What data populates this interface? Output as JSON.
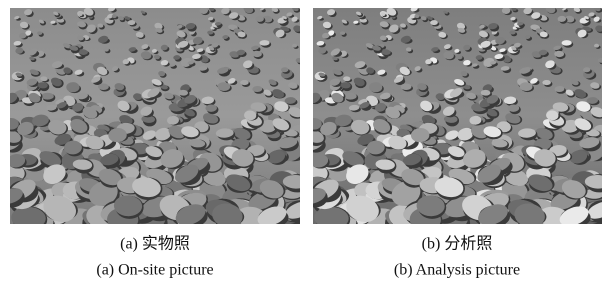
{
  "figure": {
    "panels": [
      {
        "caption_zh": "(a) 实物照",
        "caption_en": "(a) On-site picture"
      },
      {
        "caption_zh": "(b) 分析照",
        "caption_en": "(b) Analysis picture"
      }
    ]
  }
}
